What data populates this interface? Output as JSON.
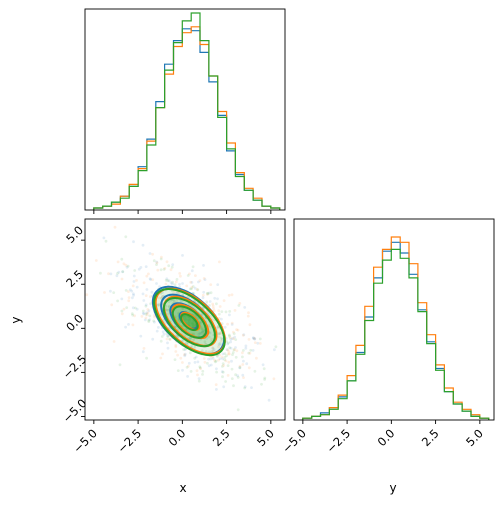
{
  "chart_data": {
    "type": "corner",
    "colors": [
      "#1f77b4",
      "#ff7f0e",
      "#2ca02c"
    ],
    "x_label": "x",
    "y_label": "y",
    "x_ticks": [
      "−5.0",
      "−2.5",
      "0.0",
      "2.5",
      "5.0"
    ],
    "y_ticks": [
      "−5.0",
      "−2.5",
      "0.0",
      "2.5",
      "5.0"
    ],
    "x_range": [
      -5.5,
      5.8
    ],
    "y_range": [
      -5.2,
      6.2
    ],
    "hist_x": {
      "bin_edges": [
        -5.0,
        -4.5,
        -4.0,
        -3.5,
        -3.0,
        -2.5,
        -2.0,
        -1.5,
        -1.0,
        -0.5,
        0.0,
        0.5,
        1.0,
        1.5,
        2.0,
        2.5,
        3.0,
        3.5,
        4.0,
        4.5,
        5.0,
        5.5
      ],
      "series": [
        {
          "counts": [
            1,
            2,
            4,
            7,
            12,
            22,
            36,
            55,
            74,
            86,
            92,
            91,
            80,
            65,
            48,
            30,
            18,
            10,
            5,
            2,
            1
          ]
        },
        {
          "counts": [
            1,
            2,
            3,
            7,
            13,
            21,
            35,
            52,
            69,
            83,
            90,
            93,
            84,
            68,
            50,
            34,
            19,
            11,
            6,
            2,
            1
          ]
        },
        {
          "counts": [
            1,
            2,
            4,
            6,
            12,
            20,
            33,
            52,
            71,
            85,
            96,
            100,
            86,
            68,
            47,
            31,
            17,
            10,
            5,
            2,
            1
          ]
        }
      ]
    },
    "hist_y": {
      "bin_edges": [
        -5.0,
        -4.5,
        -4.0,
        -3.5,
        -3.0,
        -2.5,
        -2.0,
        -1.5,
        -1.0,
        -0.5,
        0.0,
        0.5,
        1.0,
        1.5,
        2.0,
        2.5,
        3.0,
        3.5,
        4.0,
        4.5,
        5.0,
        5.5
      ],
      "series": [
        {
          "counts": [
            1,
            2,
            4,
            7,
            13,
            22,
            38,
            58,
            80,
            95,
            100,
            94,
            82,
            62,
            44,
            29,
            16,
            9,
            5,
            2,
            1
          ]
        },
        {
          "counts": [
            1,
            2,
            3,
            7,
            14,
            25,
            42,
            64,
            86,
            96,
            103,
            100,
            88,
            66,
            48,
            31,
            18,
            10,
            6,
            3,
            1
          ]
        },
        {
          "counts": [
            1,
            2,
            3,
            6,
            12,
            22,
            37,
            56,
            77,
            90,
            96,
            91,
            80,
            61,
            43,
            28,
            16,
            9,
            5,
            2,
            1
          ]
        }
      ]
    },
    "joint": {
      "center": [
        0.4,
        0.4
      ],
      "angle_deg": -42,
      "contour_levels_sigma": [
        0.5,
        1.0,
        1.5,
        2.0
      ],
      "series": [
        {
          "center": [
            0.35,
            0.45
          ],
          "sx": 2.2,
          "sy": 1.05
        },
        {
          "center": [
            0.45,
            0.4
          ],
          "sx": 2.25,
          "sy": 1.0
        },
        {
          "center": [
            0.4,
            0.35
          ],
          "sx": 2.15,
          "sy": 1.0
        }
      ]
    }
  }
}
